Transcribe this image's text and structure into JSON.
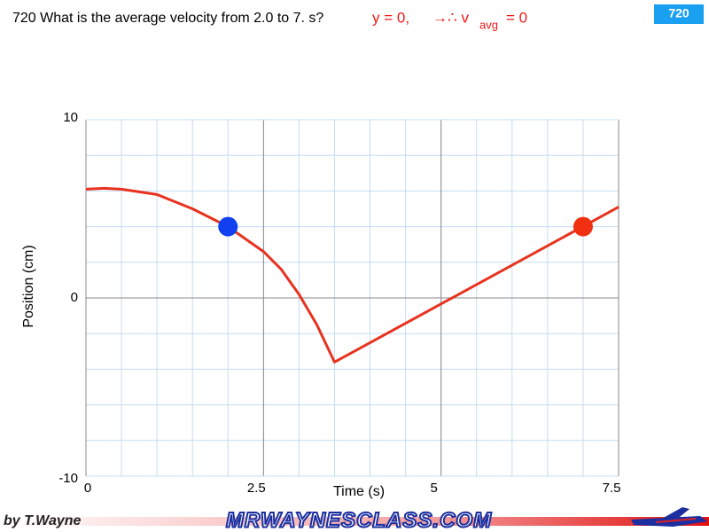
{
  "slide": {
    "number": "720",
    "question": "720 What is the average velocity from 2.0 to 7. s?",
    "answer": [
      "y = 0,",
      "→∴ v",
      "avg",
      "= 0"
    ]
  },
  "chart_data": {
    "type": "line",
    "xlabel": "Time (s)",
    "ylabel": "Position (cm)",
    "xlim": [
      0,
      7.5
    ],
    "ylim": [
      -10,
      10
    ],
    "xticks": [
      0,
      2.5,
      5,
      7.5
    ],
    "yticks": [
      -10,
      0,
      10
    ],
    "grid": true,
    "minor_grid": {
      "x": 0.5,
      "y": 2
    },
    "series": [
      {
        "color": "#e8321e",
        "x": [
          0,
          0.25,
          0.5,
          1.0,
          1.5,
          2.0,
          2.5,
          2.75,
          3.0,
          3.25,
          3.5,
          7.5
        ],
        "values": [
          6.1,
          6.15,
          6.1,
          5.8,
          5.0,
          4.0,
          2.6,
          1.6,
          0.2,
          -1.5,
          -3.6,
          5.1
        ]
      }
    ],
    "points": [
      {
        "x": 2,
        "y": 4,
        "color": "#1040f0"
      },
      {
        "x": 7,
        "y": 4,
        "color": "#f03010"
      }
    ]
  },
  "footer": {
    "author": "by T.Wayne",
    "site": "MRWAYNESCLASS.COM"
  }
}
